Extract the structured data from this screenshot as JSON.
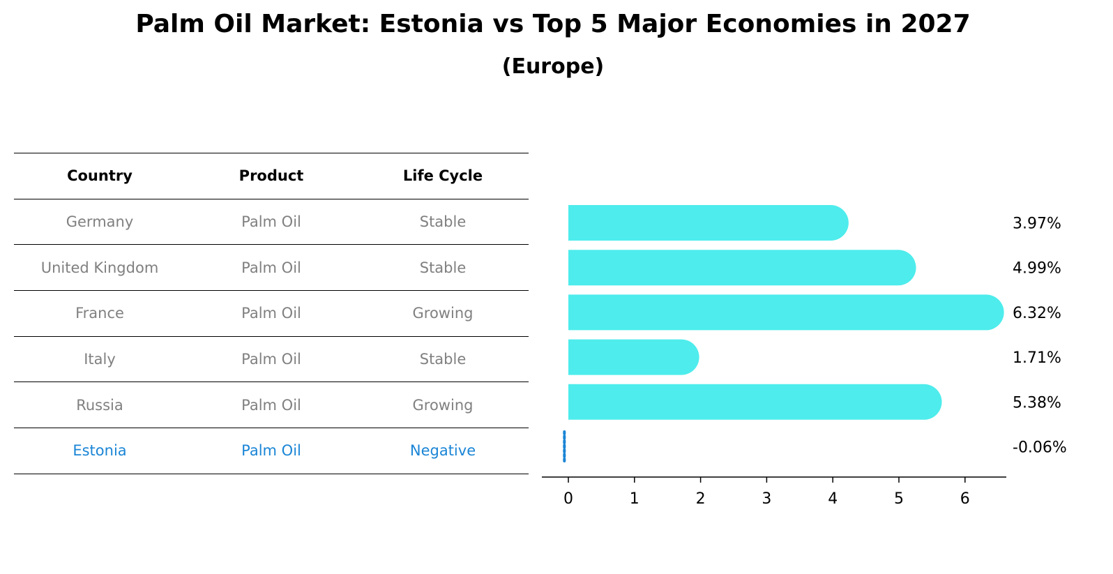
{
  "title": "Palm Oil Market: Estonia vs Top 5 Major Economies in 2027",
  "subtitle": "(Europe)",
  "table": {
    "headers": [
      "Country",
      "Product",
      "Life Cycle"
    ],
    "rows": [
      {
        "country": "Germany",
        "product": "Palm Oil",
        "life_cycle": "Stable"
      },
      {
        "country": "United Kingdom",
        "product": "Palm Oil",
        "life_cycle": "Stable"
      },
      {
        "country": "France",
        "product": "Palm Oil",
        "life_cycle": "Growing"
      },
      {
        "country": "Italy",
        "product": "Palm Oil",
        "life_cycle": "Stable"
      },
      {
        "country": "Russia",
        "product": "Palm Oil",
        "life_cycle": "Growing"
      },
      {
        "country": "Estonia",
        "product": "Palm Oil",
        "life_cycle": "Negative"
      }
    ]
  },
  "chart_data": {
    "type": "bar",
    "orientation": "horizontal",
    "categories": [
      "Germany",
      "United Kingdom",
      "France",
      "Italy",
      "Russia",
      "Estonia"
    ],
    "values": [
      3.97,
      4.99,
      6.32,
      1.71,
      5.38,
      -0.06
    ],
    "value_labels": [
      "3.97%",
      "4.99%",
      "6.32%",
      "1.71%",
      "5.38%",
      "-0.06%"
    ],
    "xticks": [
      0,
      1,
      2,
      3,
      4,
      5,
      6
    ],
    "xlim": [
      -0.4,
      6.65
    ],
    "grid": false,
    "colors": {
      "bar": "#4eecec",
      "highlight_bar": "#1a85d6",
      "table_text": "#808080",
      "highlight_text": "#1a85d6"
    }
  }
}
